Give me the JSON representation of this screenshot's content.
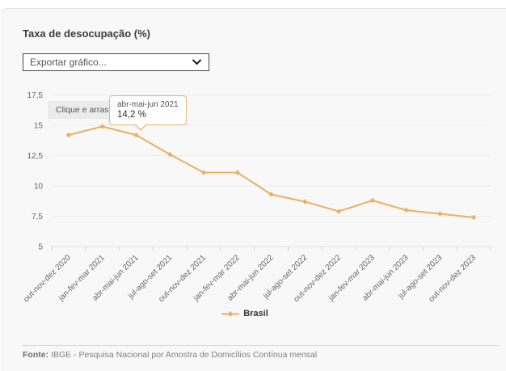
{
  "page": {
    "title": "Taxa de desocupação (%)",
    "export_select": {
      "value": "Exportar gráfico..."
    },
    "hint": "Clique e arraste",
    "tooltip": {
      "period": "abr-mai-jun 2021",
      "value": "14,2 %"
    },
    "legend": {
      "label": "Brasil"
    },
    "footer": {
      "label": "Fonte:",
      "text": "IBGE - Pesquisa Nacional por Amostra de Domicílios Contínua mensal"
    }
  },
  "colors": {
    "series": "#edaf63",
    "tooltip_border": "#e3b87f",
    "card_background": "#f8f8f9"
  },
  "chart_data": {
    "type": "line",
    "title": "Taxa de desocupação (%)",
    "categories": [
      "out-nov-dez 2020",
      "jan-fev-mar 2021",
      "abr-mai-jun 2021",
      "jul-ago-set 2021",
      "out-nov-dez 2021",
      "jan-fev-mar 2022",
      "abr-mai-jun 2022",
      "jul-ago-set 2022",
      "out-nov-dez 2022",
      "jan-fev-mar 2023",
      "abr-mai-jun 2023",
      "jul-ago-set 2023",
      "out-nov-dez 2023"
    ],
    "series": [
      {
        "name": "Brasil",
        "values": [
          14.2,
          14.9,
          14.2,
          12.6,
          11.1,
          11.1,
          9.3,
          8.7,
          7.9,
          8.8,
          8.0,
          7.7,
          7.4
        ]
      }
    ],
    "xlabel": "",
    "ylabel": "",
    "ylim": [
      5,
      17.5
    ],
    "yticks": [
      5,
      7.5,
      10,
      12.5,
      15,
      17.5
    ],
    "ytick_labels": [
      "5",
      "7,5",
      "10",
      "12,5",
      "15",
      "17,5"
    ],
    "grid": true,
    "marker": "diamond",
    "legend_position": "bottom",
    "annotation": {
      "category": "abr-mai-jun 2021",
      "value_label": "14,2 %"
    }
  }
}
